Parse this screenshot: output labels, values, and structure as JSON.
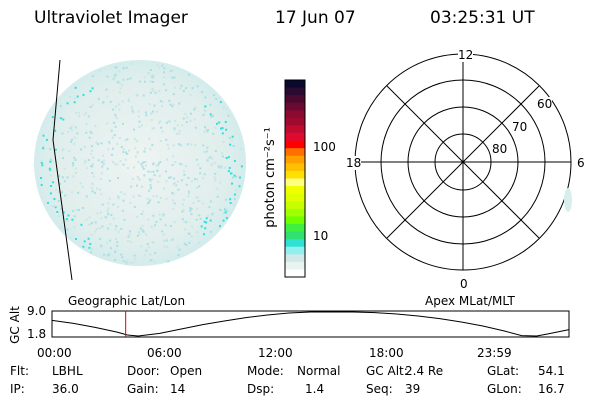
{
  "header": {
    "instrument": "Ultraviolet Imager",
    "date": "17 Jun 07",
    "time": "03:25:31 UT"
  },
  "colorbar": {
    "label": "photon cm⁻²s⁻¹",
    "ticks": [
      "100",
      "10"
    ],
    "colors": [
      "#0a0a30",
      "#2a0a30",
      "#4a0a30",
      "#6a0a30",
      "#8a0a30",
      "#a00a30",
      "#c00a30",
      "#e00a30",
      "#ff0000",
      "#ff7000",
      "#ffa000",
      "#ffc000",
      "#ffe000",
      "#ffff80",
      "#f0ff00",
      "#e0ff00",
      "#c8ff00",
      "#a0ff00",
      "#70ff00",
      "#40f040",
      "#30e070",
      "#30e0d0",
      "#90f0f0",
      "#d0e8e8",
      "#e8f4f0",
      "#ffffff"
    ]
  },
  "polar": {
    "mlt_labels": {
      "top": "12",
      "bottom": "0",
      "left": "18",
      "right": "6"
    },
    "lat_labels": [
      "60",
      "70",
      "80"
    ]
  },
  "image_accent": "#30e0e0",
  "panel_labels": {
    "geo": "Geographic Lat/Lon",
    "apex": "Apex MLat/MLT"
  },
  "chart_data": {
    "type": "line",
    "title": "",
    "ylabel": "GC Alt",
    "ylim": [
      1.8,
      9.0
    ],
    "yticks": [
      "9.0",
      "1.8"
    ],
    "xticks": [
      "00:00",
      "06:00",
      "12:00",
      "18:00",
      "23:59"
    ],
    "xlim": [
      0,
      24
    ],
    "x": [
      0,
      1,
      2,
      3,
      3.5,
      4,
      5,
      6,
      7,
      8,
      9,
      10,
      11,
      12,
      13,
      14,
      15,
      16,
      17,
      18,
      19,
      20,
      21,
      21.8,
      22.5,
      23,
      24
    ],
    "y": [
      6.5,
      5.6,
      4.4,
      3.0,
      2.1,
      1.8,
      2.6,
      3.9,
      5.2,
      6.3,
      7.3,
      8.1,
      8.7,
      9.0,
      9.0,
      9.0,
      8.8,
      8.4,
      7.8,
      7.0,
      6.0,
      4.8,
      3.3,
      1.9,
      1.8,
      2.4,
      3.7
    ],
    "current_time_marker": 3.42
  },
  "info": [
    {
      "label": "Flt:",
      "value": "LBHL"
    },
    {
      "label": "Door:",
      "value": "Open"
    },
    {
      "label": "Mode:",
      "value": "Normal"
    },
    {
      "label": "GC Alt:",
      "value": "2.4 Re"
    },
    {
      "label": "GLat:",
      "value": "54.1"
    },
    {
      "label": "IP:",
      "value": "36.0"
    },
    {
      "label": "Gain:",
      "value": "14"
    },
    {
      "label": "Dsp:",
      "value": "1.4"
    },
    {
      "label": "Seq:",
      "value": "39"
    },
    {
      "label": "GLon:",
      "value": "16.7"
    }
  ]
}
